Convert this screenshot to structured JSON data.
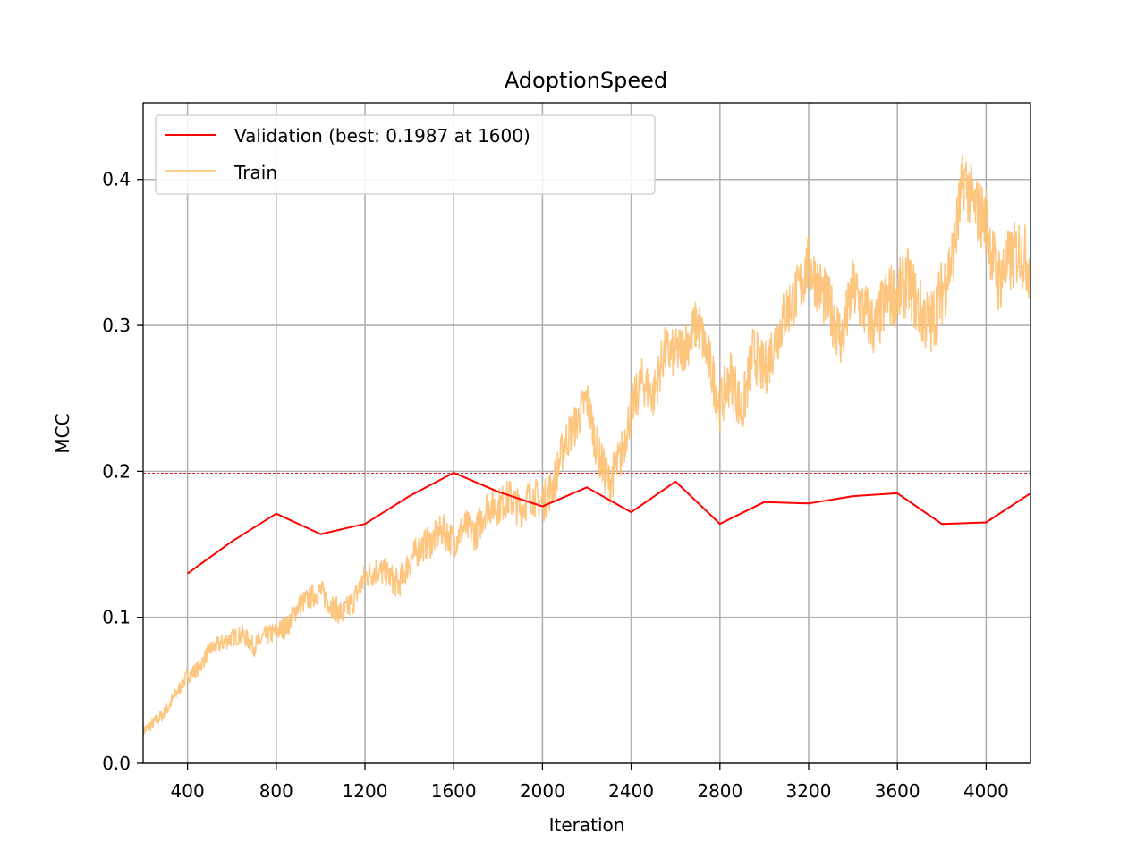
{
  "chart_data": {
    "type": "line",
    "title": "AdoptionSpeed",
    "xlabel": "Iteration",
    "ylabel": "MCC",
    "xlim": [
      200,
      4200
    ],
    "ylim": [
      0,
      0.4525
    ],
    "x_ticks": [
      400,
      800,
      1200,
      1600,
      2000,
      2400,
      2800,
      3200,
      3600,
      4000
    ],
    "y_ticks": [
      0.0,
      0.1,
      0.2,
      0.3,
      0.4
    ],
    "y_tick_labels": [
      "0.0",
      "0.1",
      "0.2",
      "0.3",
      "0.4"
    ],
    "grid": true,
    "legend_position": "top-left",
    "reference_line": {
      "y": 0.1987,
      "color": "#d62728",
      "style": "dashed"
    },
    "series": [
      {
        "name": "Validation (best: 0.1987 at 1600)",
        "color": "#ff0000",
        "x": [
          400,
          600,
          800,
          1000,
          1200,
          1400,
          1600,
          1800,
          2000,
          2200,
          2400,
          2600,
          2800,
          3000,
          3200,
          3400,
          3600,
          3800,
          4000,
          4200
        ],
        "y": [
          0.13,
          0.152,
          0.171,
          0.157,
          0.164,
          0.183,
          0.199,
          0.186,
          0.176,
          0.189,
          0.172,
          0.193,
          0.164,
          0.179,
          0.178,
          0.183,
          0.185,
          0.164,
          0.165,
          0.185
        ]
      },
      {
        "name": "Train",
        "color": "#fdbf6f",
        "x": [
          200,
          250,
          300,
          350,
          400,
          450,
          500,
          550,
          600,
          650,
          700,
          750,
          800,
          850,
          900,
          950,
          1000,
          1050,
          1100,
          1150,
          1200,
          1250,
          1300,
          1350,
          1400,
          1450,
          1500,
          1550,
          1600,
          1650,
          1700,
          1750,
          1800,
          1850,
          1900,
          1950,
          2000,
          2050,
          2100,
          2150,
          2200,
          2250,
          2300,
          2350,
          2400,
          2450,
          2500,
          2550,
          2600,
          2650,
          2700,
          2750,
          2800,
          2850,
          2900,
          2950,
          3000,
          3050,
          3100,
          3150,
          3200,
          3250,
          3300,
          3350,
          3400,
          3450,
          3500,
          3550,
          3600,
          3650,
          3700,
          3750,
          3800,
          3850,
          3900,
          3950,
          4000,
          4050,
          4100,
          4150,
          4200
        ],
        "y": [
          0.022,
          0.028,
          0.035,
          0.048,
          0.06,
          0.065,
          0.078,
          0.082,
          0.086,
          0.088,
          0.08,
          0.087,
          0.09,
          0.094,
          0.108,
          0.113,
          0.118,
          0.108,
          0.102,
          0.112,
          0.128,
          0.132,
          0.13,
          0.122,
          0.138,
          0.148,
          0.152,
          0.16,
          0.152,
          0.162,
          0.158,
          0.176,
          0.176,
          0.182,
          0.174,
          0.184,
          0.178,
          0.191,
          0.22,
          0.232,
          0.25,
          0.212,
          0.192,
          0.208,
          0.242,
          0.262,
          0.252,
          0.282,
          0.28,
          0.288,
          0.302,
          0.276,
          0.245,
          0.266,
          0.24,
          0.282,
          0.268,
          0.29,
          0.31,
          0.322,
          0.342,
          0.326,
          0.31,
          0.29,
          0.325,
          0.31,
          0.298,
          0.318,
          0.322,
          0.33,
          0.31,
          0.3,
          0.322,
          0.348,
          0.402,
          0.38,
          0.372,
          0.33,
          0.342,
          0.352,
          0.34
        ]
      }
    ]
  }
}
